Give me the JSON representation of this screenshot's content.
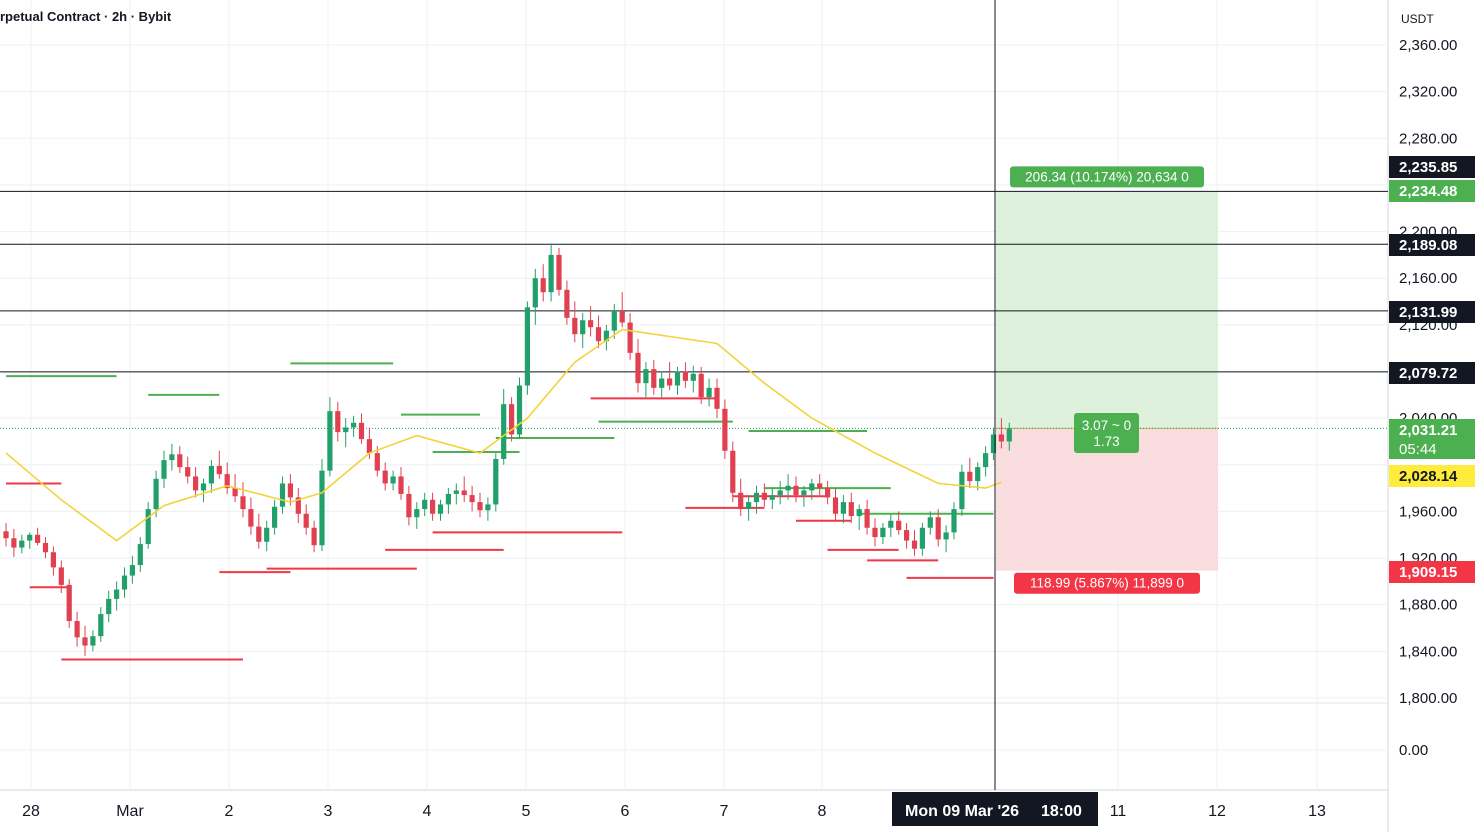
{
  "header": {
    "title": "rpetual Contract · 2h · Bybit",
    "currency": "USDT"
  },
  "colors": {
    "bull": "#22a06b",
    "bear": "#e0404f",
    "ma": "#f2d33a",
    "profit_zone": "#d8efd6",
    "loss_zone": "#f9d7d9",
    "profit_label": "#4caf50",
    "loss_label": "#f23645",
    "grid": "#eef0f3"
  },
  "chart_data": {
    "type": "candlestick",
    "interval": "2h",
    "y_range": [
      1780,
      2380
    ],
    "price_ticks": [
      "2,360.00",
      "2,320.00",
      "2,280.00",
      "2,200.00",
      "2,160.00",
      "2,120.00",
      "2,040.00",
      "1,960.00",
      "1,920.00",
      "1,880.00",
      "1,840.00",
      "1,800.00"
    ],
    "volume_tick": "0.00",
    "date_ticks": [
      "28",
      "Mar",
      "2",
      "3",
      "4",
      "5",
      "6",
      "7",
      "8",
      "11",
      "12",
      "13"
    ],
    "crosshair_date": "Mon 09 Mar '26",
    "crosshair_time": "18:00",
    "horizontal_lines": [
      2234.48,
      2189.08,
      2131.99,
      2079.72
    ],
    "price_labels": [
      {
        "text": "2,235.85",
        "price": 2235.85,
        "style": "dark"
      },
      {
        "text": "2,234.48",
        "price": 2234.48,
        "style": "green"
      },
      {
        "text": "2,189.08",
        "price": 2189.08,
        "style": "dark"
      },
      {
        "text": "2,131.99",
        "price": 2131.99,
        "style": "dark"
      },
      {
        "text": "2,079.72",
        "price": 2079.72,
        "style": "dark"
      },
      {
        "text": "2,031.21",
        "price": 2031.21,
        "style": "green",
        "sub": "05:44"
      },
      {
        "text": "2,028.14",
        "price": 2028.14,
        "style": "yellow"
      },
      {
        "text": "1,909.15",
        "price": 1909.15,
        "style": "red"
      }
    ],
    "position": {
      "entry": 2031.21,
      "target": 2234.48,
      "stop": 1909.15,
      "target_label": "206.34 (10.174%) 20,634 0",
      "stop_label": "118.99 (5.867%) 11,899 0",
      "ratio_line1": "3.07 ~ 0",
      "ratio_line2": "1.73"
    },
    "candles": [
      [
        1943,
        1950,
        1930,
        1937
      ],
      [
        1937,
        1945,
        1921,
        1929
      ],
      [
        1929,
        1940,
        1924,
        1935
      ],
      [
        1935,
        1942,
        1928,
        1940
      ],
      [
        1940,
        1946,
        1931,
        1933
      ],
      [
        1933,
        1938,
        1920,
        1925
      ],
      [
        1925,
        1930,
        1905,
        1912
      ],
      [
        1912,
        1918,
        1890,
        1897
      ],
      [
        1897,
        1902,
        1860,
        1866
      ],
      [
        1866,
        1874,
        1844,
        1852
      ],
      [
        1852,
        1862,
        1836,
        1845
      ],
      [
        1845,
        1858,
        1840,
        1853
      ],
      [
        1853,
        1878,
        1848,
        1872
      ],
      [
        1872,
        1892,
        1865,
        1885
      ],
      [
        1885,
        1900,
        1875,
        1893
      ],
      [
        1893,
        1912,
        1886,
        1905
      ],
      [
        1905,
        1922,
        1898,
        1914
      ],
      [
        1914,
        1938,
        1908,
        1932
      ],
      [
        1932,
        1968,
        1928,
        1962
      ],
      [
        1962,
        1995,
        1955,
        1988
      ],
      [
        1988,
        2012,
        1980,
        2004
      ],
      [
        2004,
        2018,
        1995,
        2009
      ],
      [
        2009,
        2016,
        1993,
        1998
      ],
      [
        1998,
        2007,
        1984,
        1990
      ],
      [
        1990,
        1998,
        1972,
        1978
      ],
      [
        1978,
        1988,
        1968,
        1984
      ],
      [
        1984,
        2004,
        1976,
        1999
      ],
      [
        1999,
        2012,
        1988,
        1992
      ],
      [
        1992,
        2002,
        1975,
        1980
      ],
      [
        1980,
        1992,
        1968,
        1973
      ],
      [
        1973,
        1985,
        1955,
        1962
      ],
      [
        1962,
        1972,
        1940,
        1947
      ],
      [
        1947,
        1958,
        1928,
        1934
      ],
      [
        1934,
        1952,
        1926,
        1946
      ],
      [
        1946,
        1970,
        1940,
        1964
      ],
      [
        1964,
        1990,
        1958,
        1984
      ],
      [
        1984,
        1992,
        1965,
        1972
      ],
      [
        1972,
        1980,
        1950,
        1958
      ],
      [
        1958,
        1966,
        1940,
        1946
      ],
      [
        1946,
        1952,
        1925,
        1931
      ],
      [
        1931,
        2005,
        1926,
        1995
      ],
      [
        1995,
        2058,
        1990,
        2046
      ],
      [
        2046,
        2054,
        2020,
        2028
      ],
      [
        2028,
        2040,
        2015,
        2032
      ],
      [
        2032,
        2042,
        2024,
        2036
      ],
      [
        2036,
        2044,
        2018,
        2022
      ],
      [
        2022,
        2032,
        2005,
        2010
      ],
      [
        2010,
        2016,
        1990,
        1995
      ],
      [
        1995,
        2002,
        1978,
        1984
      ],
      [
        1984,
        1995,
        1978,
        1990
      ],
      [
        1990,
        1998,
        1970,
        1975
      ],
      [
        1975,
        1982,
        1948,
        1955
      ],
      [
        1955,
        1968,
        1945,
        1962
      ],
      [
        1962,
        1976,
        1956,
        1970
      ],
      [
        1970,
        1976,
        1952,
        1958
      ],
      [
        1958,
        1970,
        1952,
        1966
      ],
      [
        1966,
        1980,
        1958,
        1975
      ],
      [
        1975,
        1984,
        1966,
        1978
      ],
      [
        1978,
        1990,
        1968,
        1974
      ],
      [
        1974,
        1982,
        1960,
        1968
      ],
      [
        1968,
        1976,
        1955,
        1961
      ],
      [
        1961,
        1972,
        1952,
        1966
      ],
      [
        1966,
        2010,
        1960,
        2005
      ],
      [
        2005,
        2065,
        2000,
        2052
      ],
      [
        2052,
        2058,
        2020,
        2026
      ],
      [
        2026,
        2075,
        2022,
        2068
      ],
      [
        2068,
        2140,
        2060,
        2135
      ],
      [
        2135,
        2168,
        2120,
        2160
      ],
      [
        2160,
        2172,
        2140,
        2148
      ],
      [
        2148,
        2190,
        2140,
        2180
      ],
      [
        2180,
        2186,
        2145,
        2150
      ],
      [
        2150,
        2158,
        2120,
        2126
      ],
      [
        2126,
        2140,
        2105,
        2112
      ],
      [
        2112,
        2130,
        2100,
        2124
      ],
      [
        2124,
        2136,
        2110,
        2118
      ],
      [
        2118,
        2128,
        2100,
        2106
      ],
      [
        2106,
        2120,
        2098,
        2115
      ],
      [
        2115,
        2138,
        2108,
        2132
      ],
      [
        2132,
        2148,
        2118,
        2122
      ],
      [
        2122,
        2130,
        2090,
        2096
      ],
      [
        2096,
        2108,
        2062,
        2070
      ],
      [
        2070,
        2088,
        2058,
        2082
      ],
      [
        2082,
        2090,
        2060,
        2066
      ],
      [
        2066,
        2080,
        2058,
        2074
      ],
      [
        2074,
        2088,
        2064,
        2068
      ],
      [
        2068,
        2084,
        2060,
        2080
      ],
      [
        2080,
        2088,
        2066,
        2072
      ],
      [
        2072,
        2085,
        2062,
        2078
      ],
      [
        2078,
        2084,
        2052,
        2058
      ],
      [
        2058,
        2074,
        2050,
        2066
      ],
      [
        2066,
        2074,
        2040,
        2048
      ],
      [
        2048,
        2056,
        2005,
        2012
      ],
      [
        2012,
        2020,
        1968,
        1976
      ],
      [
        1976,
        1988,
        1956,
        1962
      ],
      [
        1962,
        1974,
        1952,
        1968
      ],
      [
        1968,
        1982,
        1958,
        1976
      ],
      [
        1976,
        1984,
        1964,
        1970
      ],
      [
        1970,
        1980,
        1962,
        1974
      ],
      [
        1974,
        1986,
        1966,
        1978
      ],
      [
        1978,
        1992,
        1970,
        1982
      ],
      [
        1982,
        1990,
        1968,
        1974
      ],
      [
        1974,
        1982,
        1964,
        1978
      ],
      [
        1978,
        1988,
        1970,
        1984
      ],
      [
        1984,
        1992,
        1974,
        1980
      ],
      [
        1980,
        1986,
        1966,
        1972
      ],
      [
        1972,
        1980,
        1952,
        1958
      ],
      [
        1958,
        1974,
        1950,
        1968
      ],
      [
        1968,
        1976,
        1950,
        1956
      ],
      [
        1956,
        1966,
        1944,
        1962
      ],
      [
        1962,
        1970,
        1940,
        1946
      ],
      [
        1946,
        1954,
        1930,
        1938
      ],
      [
        1938,
        1950,
        1932,
        1946
      ],
      [
        1946,
        1958,
        1938,
        1952
      ],
      [
        1952,
        1960,
        1940,
        1944
      ],
      [
        1944,
        1950,
        1928,
        1935
      ],
      [
        1935,
        1944,
        1922,
        1928
      ],
      [
        1928,
        1950,
        1922,
        1946
      ],
      [
        1946,
        1960,
        1940,
        1955
      ],
      [
        1955,
        1962,
        1930,
        1936
      ],
      [
        1936,
        1948,
        1925,
        1942
      ],
      [
        1942,
        1968,
        1936,
        1962
      ],
      [
        1962,
        2000,
        1956,
        1994
      ],
      [
        1994,
        2006,
        1980,
        1986
      ],
      [
        1986,
        2002,
        1978,
        1998
      ],
      [
        1998,
        2016,
        1990,
        2010
      ],
      [
        2010,
        2032,
        2004,
        2026
      ],
      [
        2026,
        2040,
        2014,
        2020
      ],
      [
        2020,
        2036,
        2012,
        2031
      ]
    ],
    "moving_average": [
      [
        0,
        2010
      ],
      [
        7,
        1970
      ],
      [
        14,
        1935
      ],
      [
        20,
        1965
      ],
      [
        28,
        1982
      ],
      [
        36,
        1968
      ],
      [
        40,
        1976
      ],
      [
        46,
        2010
      ],
      [
        52,
        2025
      ],
      [
        60,
        2010
      ],
      [
        66,
        2040
      ],
      [
        72,
        2088
      ],
      [
        78,
        2116
      ],
      [
        84,
        2110
      ],
      [
        90,
        2104
      ],
      [
        96,
        2070
      ],
      [
        102,
        2040
      ],
      [
        110,
        2010
      ],
      [
        118,
        1984
      ],
      [
        124,
        1980
      ],
      [
        126,
        1985
      ]
    ],
    "resistance_segments": [
      [
        0,
        14,
        2076
      ],
      [
        18,
        27,
        2060
      ],
      [
        36,
        49,
        2087
      ],
      [
        50,
        60,
        2043
      ],
      [
        62,
        77,
        2023
      ],
      [
        75,
        92,
        2037
      ],
      [
        54,
        65,
        2011
      ],
      [
        94,
        109,
        2029
      ],
      [
        96,
        112,
        1980
      ],
      [
        108,
        125,
        1958
      ]
    ],
    "support_segments": [
      [
        0,
        7,
        1984
      ],
      [
        3,
        8,
        1895
      ],
      [
        7,
        30,
        1833
      ],
      [
        27,
        36,
        1908
      ],
      [
        33,
        52,
        1911
      ],
      [
        48,
        63,
        1927
      ],
      [
        54,
        78,
        1942
      ],
      [
        74,
        90,
        2057
      ],
      [
        86,
        96,
        1963
      ],
      [
        92,
        104,
        1973
      ],
      [
        100,
        107,
        1952
      ],
      [
        104,
        113,
        1927
      ],
      [
        109,
        118,
        1918
      ],
      [
        114,
        125,
        1903
      ]
    ]
  }
}
